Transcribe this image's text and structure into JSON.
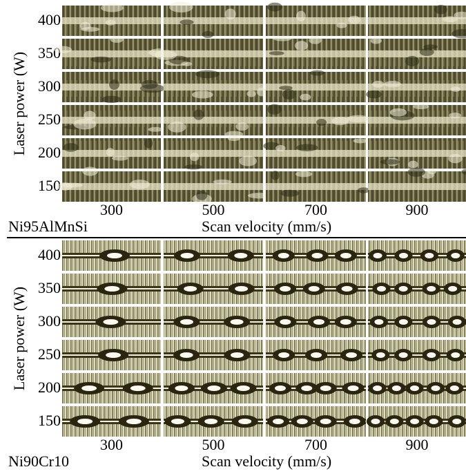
{
  "panels": [
    {
      "material": "Ni95AlMnSi",
      "y_label": "Laser power (W)",
      "x_label": "Scan velocity (mm/s)",
      "row_labels": [
        "400",
        "350",
        "300",
        "250",
        "200",
        "150"
      ],
      "column_labels": [
        "300",
        "500",
        "700",
        "900"
      ]
    },
    {
      "material": "Ni90Cr10",
      "y_label": "Laser power (W)",
      "x_label": "Scan velocity (mm/s)",
      "row_labels": [
        "400",
        "350",
        "300",
        "250",
        "200",
        "150"
      ],
      "column_labels": [
        "300",
        "500",
        "700",
        "900"
      ]
    }
  ]
}
